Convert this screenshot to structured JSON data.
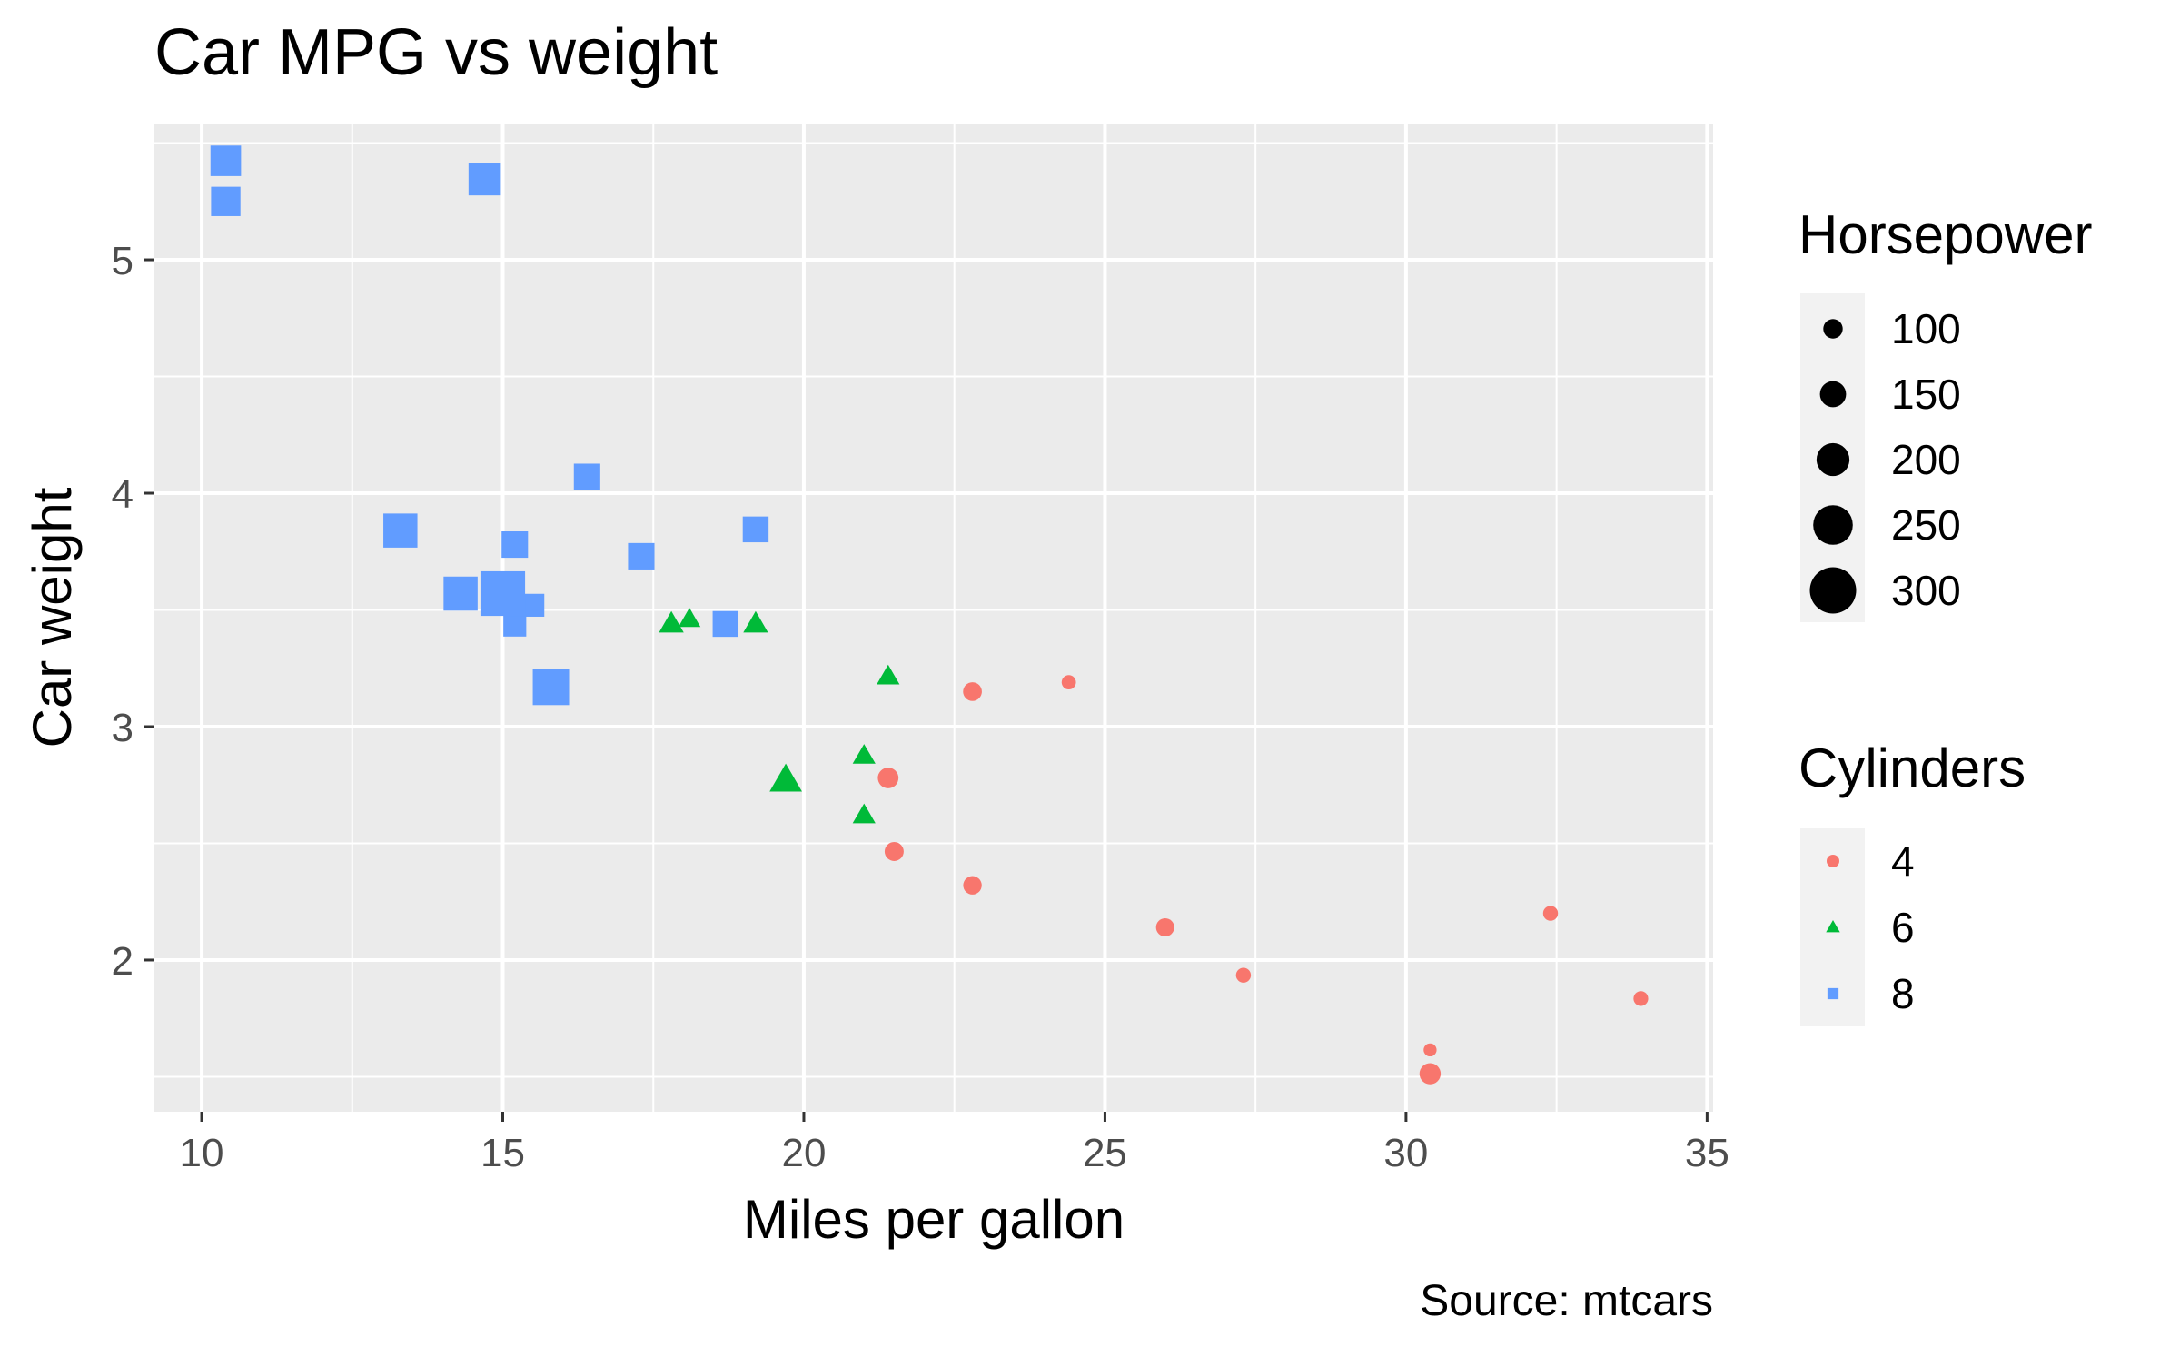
{
  "chart_data": {
    "type": "scatter",
    "title": "Car MPG vs weight",
    "xlabel": "Miles per gallon",
    "ylabel": "Car weight",
    "caption": "Source: mtcars",
    "xlim": [
      9.2,
      35.1
    ],
    "ylim": [
      1.35,
      5.58
    ],
    "xticks": [
      10,
      15,
      20,
      25,
      30,
      35
    ],
    "yticks": [
      2,
      3,
      4,
      5
    ],
    "grid": true,
    "panel_background": "#ebebeb",
    "legend_position": "right",
    "size_legend": {
      "title": "Horsepower",
      "labels": [
        "100",
        "150",
        "200",
        "250",
        "300"
      ],
      "values": [
        100,
        150,
        200,
        250,
        300
      ]
    },
    "color_legend": {
      "title": "Cylinders",
      "labels": [
        "4",
        "6",
        "8"
      ]
    },
    "series": [
      {
        "name": "4",
        "color": "#f8766d",
        "shape": "circle",
        "points": [
          {
            "x": 22.8,
            "y": 2.32,
            "hp": 93
          },
          {
            "x": 24.4,
            "y": 3.19,
            "hp": 62
          },
          {
            "x": 22.8,
            "y": 3.15,
            "hp": 95
          },
          {
            "x": 32.4,
            "y": 2.2,
            "hp": 66
          },
          {
            "x": 30.4,
            "y": 1.615,
            "hp": 52
          },
          {
            "x": 33.9,
            "y": 1.835,
            "hp": 65
          },
          {
            "x": 21.5,
            "y": 2.465,
            "hp": 97
          },
          {
            "x": 27.3,
            "y": 1.935,
            "hp": 66
          },
          {
            "x": 26.0,
            "y": 2.14,
            "hp": 91
          },
          {
            "x": 30.4,
            "y": 1.513,
            "hp": 113
          },
          {
            "x": 21.4,
            "y": 2.78,
            "hp": 109
          }
        ]
      },
      {
        "name": "6",
        "color": "#00ba38",
        "shape": "triangle",
        "points": [
          {
            "x": 21.0,
            "y": 2.62,
            "hp": 110
          },
          {
            "x": 21.0,
            "y": 2.875,
            "hp": 110
          },
          {
            "x": 21.4,
            "y": 3.215,
            "hp": 110
          },
          {
            "x": 18.1,
            "y": 3.46,
            "hp": 105
          },
          {
            "x": 19.2,
            "y": 3.44,
            "hp": 123
          },
          {
            "x": 17.8,
            "y": 3.44,
            "hp": 123
          },
          {
            "x": 19.7,
            "y": 2.77,
            "hp": 175
          }
        ]
      },
      {
        "name": "8",
        "color": "#619cff",
        "shape": "square",
        "points": [
          {
            "x": 18.7,
            "y": 3.44,
            "hp": 175
          },
          {
            "x": 14.3,
            "y": 3.57,
            "hp": 245
          },
          {
            "x": 16.4,
            "y": 4.07,
            "hp": 180
          },
          {
            "x": 17.3,
            "y": 3.73,
            "hp": 180
          },
          {
            "x": 15.2,
            "y": 3.78,
            "hp": 180
          },
          {
            "x": 10.4,
            "y": 5.25,
            "hp": 205
          },
          {
            "x": 10.4,
            "y": 5.424,
            "hp": 215
          },
          {
            "x": 14.7,
            "y": 5.345,
            "hp": 230
          },
          {
            "x": 15.5,
            "y": 3.52,
            "hp": 150
          },
          {
            "x": 15.2,
            "y": 3.435,
            "hp": 150
          },
          {
            "x": 13.3,
            "y": 3.84,
            "hp": 245
          },
          {
            "x": 19.2,
            "y": 3.845,
            "hp": 175
          },
          {
            "x": 15.8,
            "y": 3.17,
            "hp": 264
          },
          {
            "x": 15.0,
            "y": 3.57,
            "hp": 335
          }
        ]
      }
    ]
  }
}
